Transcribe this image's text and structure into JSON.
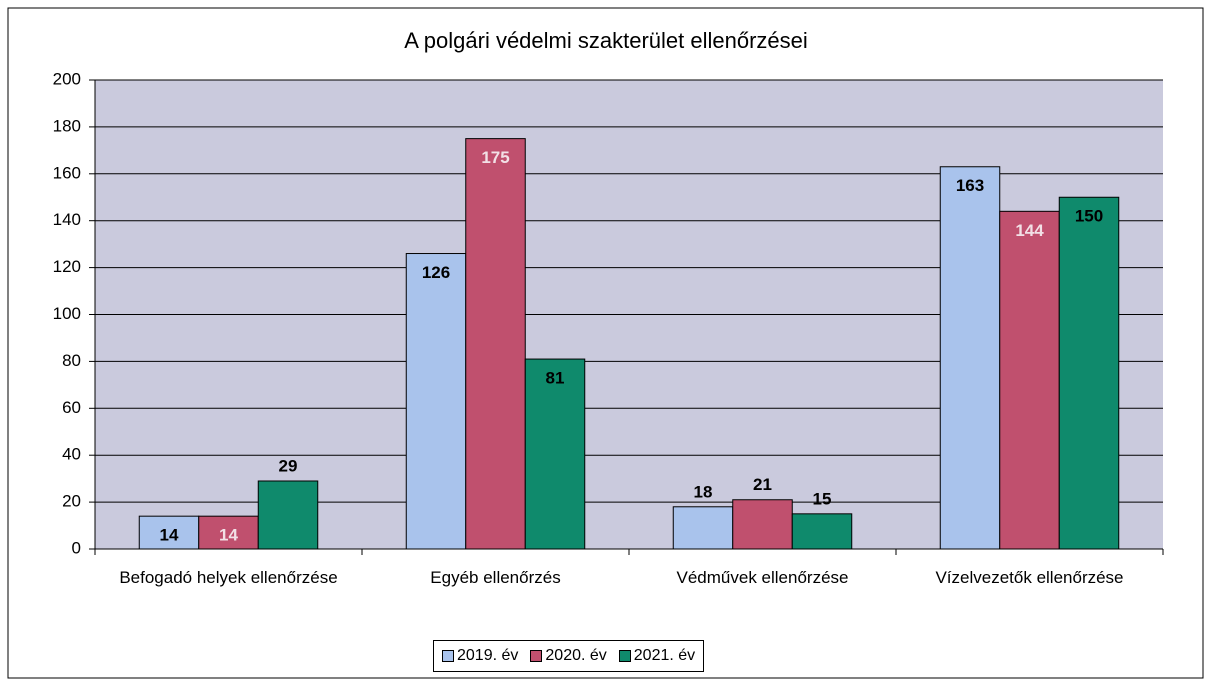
{
  "chart_data": {
    "type": "bar",
    "title": "A polgári védelmi szakterület ellenőrzései",
    "categories": [
      "Befogadó helyek ellenőrzése",
      "Egyéb ellenőrzés",
      "Védművek ellenőrzése",
      "Vízelvezetők ellenőrzése"
    ],
    "series": [
      {
        "name": "2019. év",
        "color": "#a9c3ec",
        "values": [
          14,
          126,
          18,
          163
        ]
      },
      {
        "name": "2020. év",
        "color": "#c0506e",
        "values": [
          14,
          175,
          21,
          144
        ]
      },
      {
        "name": "2021. év",
        "color": "#0f8a6c",
        "values": [
          29,
          81,
          15,
          150
        ]
      }
    ],
    "ylim": [
      0,
      200
    ],
    "yticks": [
      0,
      20,
      40,
      60,
      80,
      100,
      120,
      140,
      160,
      180,
      200
    ],
    "grid": true,
    "legend": "bottom"
  }
}
